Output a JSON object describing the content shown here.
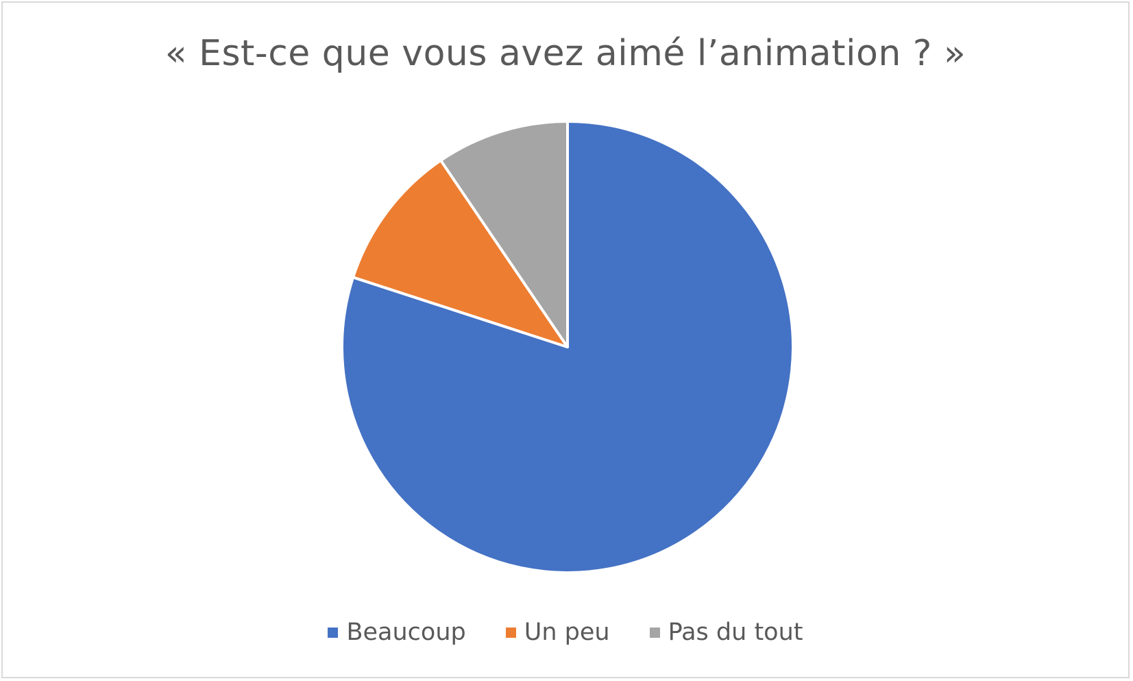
{
  "chart_data": {
    "type": "pie",
    "title": "« Est-ce que vous avez aimé l’animation ? »",
    "categories": [
      "Beaucoup",
      "Un peu",
      "Pas du tout"
    ],
    "values": [
      80,
      10.5,
      9.5
    ],
    "colors": [
      "#4472C4",
      "#ED7D31",
      "#A5A5A5"
    ],
    "start_angle": "12 o'clock, clockwise",
    "legend_position": "bottom"
  }
}
